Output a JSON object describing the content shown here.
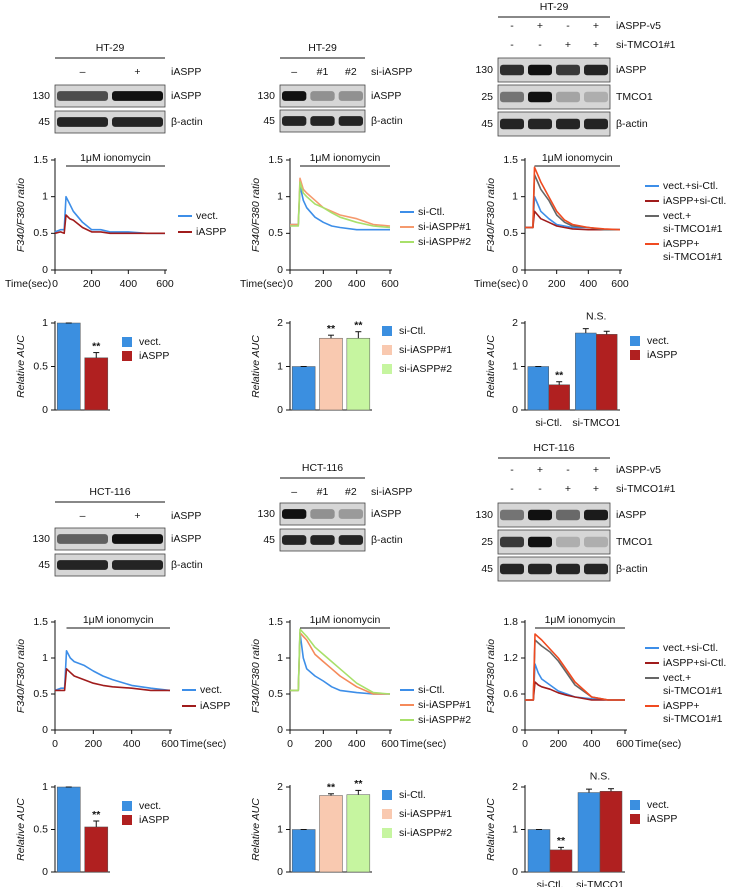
{
  "blots": [
    {
      "cell_line": "HT-29",
      "lanes": [
        {
          "name": "iASPP",
          "labels": [
            "–",
            "+"
          ]
        }
      ],
      "rows": [
        {
          "marker": "130",
          "protein": "iASPP"
        },
        {
          "marker": "45",
          "protein": "β-actin"
        }
      ]
    },
    {
      "cell_line": "HT-29",
      "lanes": [
        {
          "name": "si-iASPP",
          "labels": [
            "–",
            "#1",
            "#2"
          ]
        }
      ],
      "rows": [
        {
          "marker": "130",
          "protein": "iASPP"
        },
        {
          "marker": "45",
          "protein": "β-actin"
        }
      ]
    },
    {
      "cell_line": "HT-29",
      "lanes": [
        {
          "name": "iASPP-v5",
          "labels": [
            "-",
            "+",
            "-",
            "+"
          ]
        },
        {
          "name": "si-TMCO1#1",
          "labels": [
            "-",
            "-",
            "+",
            "+"
          ]
        }
      ],
      "rows": [
        {
          "marker": "130",
          "protein": "iASPP"
        },
        {
          "marker": "25",
          "protein": "TMCO1"
        },
        {
          "marker": "45",
          "protein": "β-actin"
        }
      ]
    },
    {
      "cell_line": "HCT-116",
      "lanes": [
        {
          "name": "iASPP",
          "labels": [
            "–",
            "+"
          ]
        }
      ],
      "rows": [
        {
          "marker": "130",
          "protein": "iASPP"
        },
        {
          "marker": "45",
          "protein": "β-actin"
        }
      ]
    },
    {
      "cell_line": "HCT-116",
      "lanes": [
        {
          "name": "si-iASPP",
          "labels": [
            "–",
            "#1",
            "#2"
          ]
        }
      ],
      "rows": [
        {
          "marker": "130",
          "protein": "iASPP"
        },
        {
          "marker": "45",
          "protein": "β-actin"
        }
      ]
    },
    {
      "cell_line": "HCT-116",
      "lanes": [
        {
          "name": "iASPP-v5",
          "labels": [
            "-",
            "+",
            "-",
            "+"
          ]
        },
        {
          "name": "si-TMCO1#1",
          "labels": [
            "-",
            "-",
            "+",
            "+"
          ]
        }
      ],
      "rows": [
        {
          "marker": "130",
          "protein": "iASPP"
        },
        {
          "marker": "25",
          "protein": "TMCO1"
        },
        {
          "marker": "45",
          "protein": "β-actin"
        }
      ]
    }
  ],
  "chart_data": [
    {
      "type": "line",
      "ylabel": "F340/F380 ratio",
      "xlabel": "Time(sec)",
      "annotation": "1μM ionomycin",
      "annotation_span": [
        60,
        600
      ],
      "x": [
        0,
        30,
        50,
        60,
        80,
        100,
        150,
        200,
        250,
        300,
        400,
        500,
        600
      ],
      "xlim": [
        0,
        600
      ],
      "xticks": [
        0,
        200,
        400,
        600
      ],
      "ylim": [
        0,
        1.5
      ],
      "yticks": [
        0,
        0.5,
        1,
        1.5
      ],
      "series": [
        {
          "name": "vect.",
          "color": "#3d8ee8",
          "values": [
            0.52,
            0.55,
            0.55,
            1.0,
            0.9,
            0.8,
            0.65,
            0.55,
            0.55,
            0.52,
            0.52,
            0.5,
            0.5
          ]
        },
        {
          "name": "iASPP",
          "color": "#a01c1c",
          "values": [
            0.5,
            0.52,
            0.5,
            0.75,
            0.7,
            0.68,
            0.58,
            0.52,
            0.52,
            0.5,
            0.5,
            0.5,
            0.5
          ]
        }
      ]
    },
    {
      "type": "line",
      "ylabel": "F340/F380 ratio",
      "xlabel": "Time(sec)",
      "annotation": "1μM ionomycin",
      "annotation_span": [
        60,
        600
      ],
      "x": [
        0,
        30,
        50,
        60,
        80,
        100,
        150,
        200,
        250,
        300,
        400,
        500,
        600
      ],
      "xlim": [
        0,
        600
      ],
      "xticks": [
        0,
        200,
        400,
        600
      ],
      "ylim": [
        0,
        1.5
      ],
      "yticks": [
        0,
        0.5,
        1,
        1.5
      ],
      "series": [
        {
          "name": "si-Ctl.",
          "color": "#3d8ee8",
          "values": [
            0.62,
            0.62,
            0.62,
            1.15,
            0.95,
            0.85,
            0.72,
            0.65,
            0.6,
            0.58,
            0.55,
            0.55,
            0.55
          ]
        },
        {
          "name": "si-iASPP#1",
          "color": "#f59a6e",
          "values": [
            0.62,
            0.62,
            0.62,
            1.25,
            1.1,
            1.05,
            0.95,
            0.85,
            0.8,
            0.75,
            0.7,
            0.62,
            0.6
          ]
        },
        {
          "name": "si-iASPP#2",
          "color": "#a8e06a",
          "values": [
            0.6,
            0.6,
            0.6,
            1.2,
            1.05,
            1.0,
            0.9,
            0.85,
            0.78,
            0.72,
            0.65,
            0.6,
            0.58
          ]
        }
      ]
    },
    {
      "type": "line",
      "ylabel": "F340/F380 ratio",
      "xlabel": "Time(sec)",
      "annotation": "1μM ionomycin",
      "annotation_span": [
        60,
        600
      ],
      "x": [
        0,
        30,
        50,
        60,
        80,
        100,
        150,
        200,
        250,
        300,
        400,
        500,
        600
      ],
      "xlim": [
        0,
        600
      ],
      "xticks": [
        0,
        200,
        400,
        600
      ],
      "ylim": [
        0,
        1.5
      ],
      "yticks": [
        0,
        0.5,
        1,
        1.5
      ],
      "series": [
        {
          "name": "vect.+si-Ctl.",
          "color": "#3d8ee8",
          "values": [
            0.58,
            0.58,
            0.58,
            1.0,
            0.9,
            0.8,
            0.7,
            0.62,
            0.6,
            0.58,
            0.58,
            0.55,
            0.55
          ]
        },
        {
          "name": "iASPP+si-Ctl.",
          "color": "#a01c1c",
          "values": [
            0.58,
            0.58,
            0.58,
            0.8,
            0.75,
            0.7,
            0.65,
            0.6,
            0.58,
            0.56,
            0.55,
            0.55,
            0.55
          ]
        },
        {
          "name": "vect.+si-TMCO1#1",
          "color": "#666666",
          "values": [
            0.58,
            0.58,
            0.58,
            1.3,
            1.2,
            1.1,
            0.95,
            0.75,
            0.65,
            0.6,
            0.58,
            0.55,
            0.55
          ]
        },
        {
          "name": "iASPP+si-TMCO1#1",
          "color": "#f04a20",
          "values": [
            0.58,
            0.58,
            0.58,
            1.4,
            1.3,
            1.2,
            1.0,
            0.8,
            0.68,
            0.62,
            0.58,
            0.56,
            0.55
          ]
        }
      ]
    },
    {
      "type": "bar",
      "ylabel": "Relative AUC",
      "categories": [
        "vect.",
        "iASPP"
      ],
      "values": [
        1,
        0.6
      ],
      "errors": [
        0,
        0.06
      ],
      "colors": [
        "#3b8fe0",
        "#b02020"
      ],
      "sig_labels": [
        null,
        "**"
      ],
      "ylim": [
        0,
        1
      ],
      "yticks": [
        0,
        0.5,
        1
      ]
    },
    {
      "type": "bar",
      "ylabel": "Relative AUC",
      "categories": [
        "si-Ctl.",
        "si-iASPP#1",
        "si-iASPP#2"
      ],
      "values": [
        1,
        1.65,
        1.65
      ],
      "errors": [
        0,
        0.07,
        0.15
      ],
      "colors": [
        "#3b8fe0",
        "#f9c9b0",
        "#c6f5a0"
      ],
      "sig_labels": [
        null,
        "**",
        "**"
      ],
      "ylim": [
        0,
        2
      ],
      "yticks": [
        0,
        1,
        2
      ]
    },
    {
      "type": "grouped_bar",
      "ylabel": "Relative AUC",
      "categories": [
        "si-Ctl.",
        "si-TMCO1"
      ],
      "group_labels": [
        null,
        "N.S."
      ],
      "ylim": [
        0,
        2
      ],
      "yticks": [
        0,
        1,
        2
      ],
      "series": [
        {
          "name": "vect.",
          "color": "#3b8fe0",
          "values": [
            1,
            1.77
          ],
          "errors": [
            0,
            0.1
          ],
          "sig_labels": [
            null,
            null
          ]
        },
        {
          "name": "iASPP",
          "color": "#b02020",
          "values": [
            0.58,
            1.74
          ],
          "errors": [
            0.07,
            0.07
          ],
          "sig_labels": [
            "**",
            null
          ]
        }
      ]
    },
    {
      "type": "line",
      "ylabel": "F340/F380 ratio",
      "xlabel": "Time(sec)",
      "annotation": "1μM ionomycin",
      "annotation_span": [
        60,
        600
      ],
      "x": [
        0,
        30,
        50,
        60,
        80,
        100,
        150,
        200,
        250,
        300,
        400,
        500,
        600
      ],
      "xlim": [
        0,
        600
      ],
      "xticks": [
        0,
        200,
        400,
        600
      ],
      "ylim": [
        0,
        1.5
      ],
      "yticks": [
        0,
        0.5,
        1,
        1.5
      ],
      "series": [
        {
          "name": "vect.",
          "color": "#3d8ee8",
          "values": [
            0.55,
            0.58,
            0.58,
            1.1,
            1.0,
            0.95,
            0.9,
            0.82,
            0.75,
            0.7,
            0.62,
            0.58,
            0.55
          ]
        },
        {
          "name": "iASPP",
          "color": "#a01c1c",
          "values": [
            0.55,
            0.55,
            0.55,
            0.85,
            0.8,
            0.75,
            0.7,
            0.65,
            0.62,
            0.6,
            0.58,
            0.55,
            0.55
          ]
        }
      ]
    },
    {
      "type": "line",
      "ylabel": "F340/F380 ratio",
      "xlabel": "Time(sec)",
      "annotation": "1μM ionomycin",
      "annotation_span": [
        60,
        600
      ],
      "x": [
        0,
        30,
        50,
        60,
        80,
        100,
        150,
        200,
        250,
        300,
        400,
        500,
        600
      ],
      "xlim": [
        0,
        600
      ],
      "xticks": [
        0,
        200,
        400,
        600
      ],
      "ylim": [
        0,
        1.5
      ],
      "yticks": [
        0,
        0.5,
        1,
        1.5
      ],
      "series": [
        {
          "name": "si-Ctl.",
          "color": "#3d8ee8",
          "values": [
            0.55,
            0.55,
            0.55,
            1.35,
            1.0,
            0.85,
            0.75,
            0.68,
            0.6,
            0.55,
            0.52,
            0.5,
            0.5
          ]
        },
        {
          "name": "si-iASPP#1",
          "color": "#f58a5a",
          "values": [
            0.55,
            0.55,
            0.55,
            1.35,
            1.3,
            1.25,
            1.05,
            0.95,
            0.85,
            0.75,
            0.6,
            0.5,
            0.5
          ]
        },
        {
          "name": "si-iASPP#2",
          "color": "#a8e06a",
          "values": [
            0.55,
            0.55,
            0.55,
            1.4,
            1.35,
            1.3,
            1.15,
            1.05,
            0.95,
            0.85,
            0.65,
            0.52,
            0.5
          ]
        }
      ]
    },
    {
      "type": "line",
      "ylabel": "F340/F380 ratio",
      "xlabel": "Time(sec)",
      "annotation": "1μM ionomycin",
      "annotation_span": [
        60,
        600
      ],
      "x": [
        0,
        30,
        50,
        60,
        80,
        100,
        150,
        200,
        250,
        300,
        400,
        500,
        600
      ],
      "xlim": [
        0,
        600
      ],
      "xticks": [
        0,
        200,
        400,
        600
      ],
      "ylim": [
        0,
        1.8
      ],
      "yticks": [
        0,
        0.6,
        1.2,
        1.8
      ],
      "series": [
        {
          "name": "vect.+si-Ctl.",
          "color": "#3d8ee8",
          "values": [
            0.5,
            0.5,
            0.5,
            1.1,
            0.95,
            0.85,
            0.75,
            0.65,
            0.6,
            0.55,
            0.52,
            0.5,
            0.5
          ]
        },
        {
          "name": "iASPP+si-Ctl.",
          "color": "#a01c1c",
          "values": [
            0.5,
            0.5,
            0.5,
            0.8,
            0.75,
            0.72,
            0.68,
            0.62,
            0.58,
            0.55,
            0.5,
            0.5,
            0.5
          ]
        },
        {
          "name": "vect.+si-TMCO1#1",
          "color": "#666666",
          "values": [
            0.5,
            0.5,
            0.5,
            1.5,
            1.45,
            1.4,
            1.3,
            1.15,
            0.95,
            0.75,
            0.55,
            0.5,
            0.5
          ]
        },
        {
          "name": "iASPP+si-TMCO1#1",
          "color": "#f04a20",
          "values": [
            0.5,
            0.5,
            0.5,
            1.6,
            1.55,
            1.5,
            1.35,
            1.2,
            1.0,
            0.8,
            0.55,
            0.5,
            0.5
          ]
        }
      ]
    },
    {
      "type": "bar",
      "ylabel": "Relative AUC",
      "categories": [
        "vect.",
        "iASPP"
      ],
      "values": [
        1,
        0.53
      ],
      "errors": [
        0,
        0.07
      ],
      "colors": [
        "#3b8fe0",
        "#b02020"
      ],
      "sig_labels": [
        null,
        "**"
      ],
      "ylim": [
        0,
        1
      ],
      "yticks": [
        0,
        0.5,
        1
      ]
    },
    {
      "type": "bar",
      "ylabel": "Relative AUC",
      "categories": [
        "si-Ctl.",
        "si-iASPP#1",
        "si-iASPP#2"
      ],
      "values": [
        1,
        1.8,
        1.82
      ],
      "errors": [
        0,
        0.04,
        0.1
      ],
      "colors": [
        "#3b8fe0",
        "#f9c9b0",
        "#c6f5a0"
      ],
      "sig_labels": [
        null,
        "**",
        "**"
      ],
      "ylim": [
        0,
        2
      ],
      "yticks": [
        0,
        1,
        2
      ]
    },
    {
      "type": "grouped_bar",
      "ylabel": "Relative AUC",
      "categories": [
        "si-Ctl.",
        "si-TMCO1"
      ],
      "group_labels": [
        null,
        "N.S."
      ],
      "ylim": [
        0,
        2
      ],
      "yticks": [
        0,
        1,
        2
      ],
      "series": [
        {
          "name": "vect.",
          "color": "#3b8fe0",
          "values": [
            1,
            1.87
          ],
          "errors": [
            0,
            0.08
          ],
          "sig_labels": [
            null,
            null
          ]
        },
        {
          "name": "iASPP",
          "color": "#b02020",
          "values": [
            0.52,
            1.9
          ],
          "errors": [
            0.06,
            0.06
          ],
          "sig_labels": [
            "**",
            null
          ]
        }
      ]
    }
  ]
}
